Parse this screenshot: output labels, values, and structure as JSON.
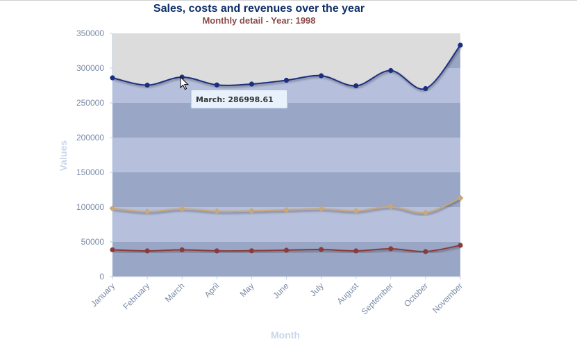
{
  "chart_data": {
    "type": "area",
    "title": "Sales, costs and revenues over the year",
    "subtitle": "Monthly detail - Year: 1998",
    "xlabel": "Month",
    "ylabel": "Values",
    "categories": [
      "January",
      "February",
      "March",
      "April",
      "May",
      "June",
      "July",
      "August",
      "September",
      "October",
      "November"
    ],
    "ylim": [
      0,
      350000
    ],
    "yticks": [
      0,
      50000,
      100000,
      150000,
      200000,
      250000,
      300000,
      350000
    ],
    "grid": "alternating-bands",
    "legend": "none",
    "series": [
      {
        "values": [
          286000,
          275500,
          286998.61,
          275800,
          277000,
          282500,
          289000,
          274500,
          296500,
          270500,
          333000
        ],
        "color": "#1b2f80",
        "fill": "#9aa6c6",
        "marker": "circle"
      },
      {
        "values": [
          98000,
          93500,
          97500,
          94000,
          94500,
          96000,
          97500,
          94500,
          100500,
          92000,
          113000
        ],
        "color": "#c8a878",
        "marker": "diamond"
      },
      {
        "values": [
          38500,
          37000,
          38500,
          37000,
          37200,
          38000,
          39000,
          37000,
          40000,
          36000,
          45000
        ],
        "color": "#8b3b3b",
        "marker": "circle"
      }
    ],
    "tooltip": {
      "text": "March: 286998.61"
    }
  },
  "colors": {
    "title": "#0d2e66",
    "subtitle": "#8a4a4a",
    "band_dark": "#9aa6c6",
    "band_light": "#b6bfdc",
    "band_gray": "#dcdcdc"
  }
}
